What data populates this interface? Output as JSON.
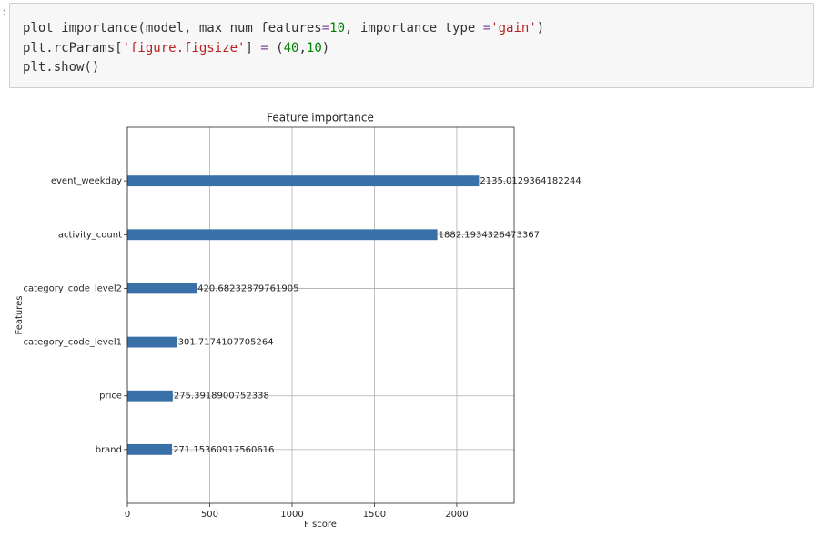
{
  "prompt": ":",
  "code": {
    "lines": [
      "plot_importance(model, max_num_features=10, importance_type ='gain')",
      "plt.rcParams['figure.figsize'] = (40,10)",
      "plt.show()"
    ]
  },
  "chart_data": {
    "type": "barh",
    "title": "Feature importance",
    "x_label": "F score",
    "y_label": "Features",
    "categories": [
      "event_weekday",
      "activity_count",
      "category_code_level2",
      "category_code_level1",
      "price",
      "brand"
    ],
    "values": [
      2135.0129364182244,
      1882.1934326473367,
      420.68232879761905,
      301.7174107705264,
      275.3918900752338,
      271.15360917560616
    ],
    "color": "#3a70a8",
    "xlim": [
      0,
      2348.5
    ],
    "xticks": [
      0,
      500,
      1000,
      1500,
      2000
    ],
    "grid": true
  }
}
